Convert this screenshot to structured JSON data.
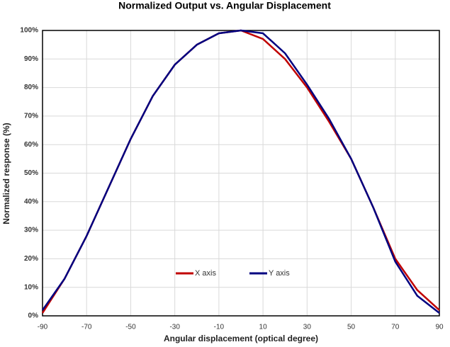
{
  "chart_data": {
    "type": "line",
    "title": "Normalized Output vs. Angular Displacement",
    "x_label": "Angular displacement (optical degree)",
    "y_label": "Normalized response (%)",
    "x": [
      -90,
      -80,
      -70,
      -60,
      -50,
      -40,
      -30,
      -20,
      -10,
      0,
      10,
      20,
      30,
      40,
      50,
      60,
      70,
      80,
      90
    ],
    "series": [
      {
        "name": "X axis",
        "color": "#c00000",
        "values": [
          1,
          13,
          28,
          45,
          62,
          77,
          88,
          95,
          99,
          100,
          97,
          90,
          80,
          68,
          55,
          38,
          20,
          9,
          2
        ]
      },
      {
        "name": "Y axis",
        "color": "#000080",
        "values": [
          2,
          13,
          28,
          45,
          62,
          77,
          88,
          95,
          99,
          100,
          99,
          92,
          81,
          69,
          55,
          38,
          19,
          7,
          1
        ]
      }
    ],
    "xlim": [
      -90,
      90
    ],
    "xticks": [
      -90,
      -70,
      -50,
      -30,
      -10,
      10,
      30,
      50,
      70,
      90
    ],
    "ylim": [
      0,
      100
    ],
    "yticks": [
      {
        "value": 0,
        "label": "0%"
      },
      {
        "value": 10,
        "label": "10%"
      },
      {
        "value": 20,
        "label": "20%"
      },
      {
        "value": 30,
        "label": "30%"
      },
      {
        "value": 40,
        "label": "40%"
      },
      {
        "value": 50,
        "label": "50%"
      },
      {
        "value": 60,
        "label": "60%"
      },
      {
        "value": 70,
        "label": "70%"
      },
      {
        "value": 80,
        "label": "80%"
      },
      {
        "value": 90,
        "label": "90%"
      },
      {
        "value": 100,
        "label": "100%"
      }
    ],
    "grid": true
  }
}
